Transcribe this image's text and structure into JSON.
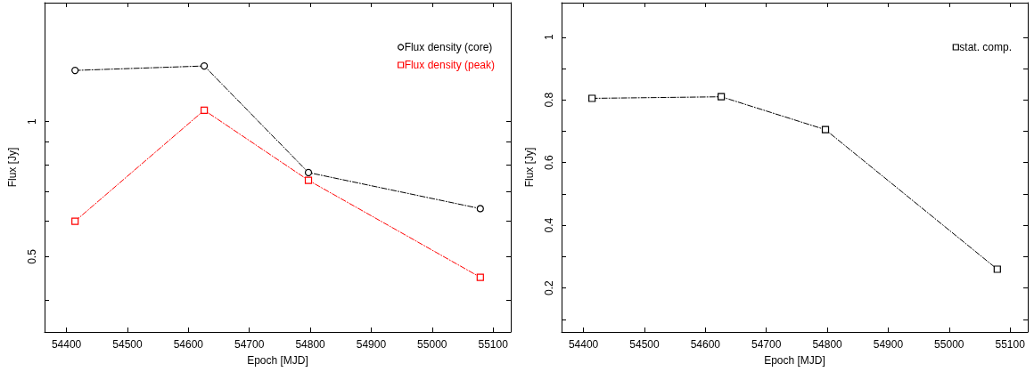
{
  "chart_data": [
    {
      "type": "line",
      "xlabel": "Epoch [MJD]",
      "ylabel": "Flux [Jy]",
      "log": "y",
      "legend": "top right",
      "line_style": "dashed",
      "grid": false,
      "x": [
        54414,
        54626,
        54797,
        55079
      ],
      "xlim": [
        54364,
        55129
      ],
      "xticks": [
        54400,
        54500,
        54600,
        54700,
        54800,
        54900,
        55000,
        55100
      ],
      "ylim": [
        0.34,
        1.84
      ],
      "yticks": [
        {
          "value": 0.4,
          "label": null
        },
        0.5,
        {
          "value": 0.6,
          "label": null
        },
        {
          "value": 0.7,
          "label": null
        },
        {
          "value": 0.8,
          "label": null
        },
        {
          "value": 0.9,
          "label": null
        },
        1
      ],
      "series": [
        {
          "name": "Flux density (core)",
          "color": "#000000",
          "marker": "circle",
          "values": [
            1.3,
            1.33,
            0.77,
            0.64
          ]
        },
        {
          "name": "Flux density (peak)",
          "color": "#ff0000",
          "marker": "square",
          "values": [
            0.6,
            1.06,
            0.74,
            0.45
          ]
        }
      ]
    },
    {
      "type": "line",
      "xlabel": "Epoch [MJD]",
      "ylabel": "Flux [Jy]",
      "legend": "top right",
      "line_style": "dashed",
      "grid": false,
      "x": [
        54414,
        54626,
        54797,
        55079
      ],
      "xlim": [
        54364,
        55129
      ],
      "xticks": [
        54400,
        54500,
        54600,
        54700,
        54800,
        54900,
        55000,
        55100
      ],
      "ylim": [
        0.06,
        1.11
      ],
      "yticks": [
        {
          "value": 0.1,
          "label": null
        },
        0.2,
        {
          "value": 0.3,
          "label": null
        },
        0.4,
        {
          "value": 0.5,
          "label": null
        },
        0.6,
        {
          "value": 0.7,
          "label": null
        },
        0.8,
        {
          "value": 0.9,
          "label": null
        },
        1
      ],
      "series": [
        {
          "name": "stat. comp.",
          "color": "#000000",
          "marker": "square",
          "values": [
            0.805,
            0.81,
            0.705,
            0.26
          ]
        }
      ]
    }
  ]
}
